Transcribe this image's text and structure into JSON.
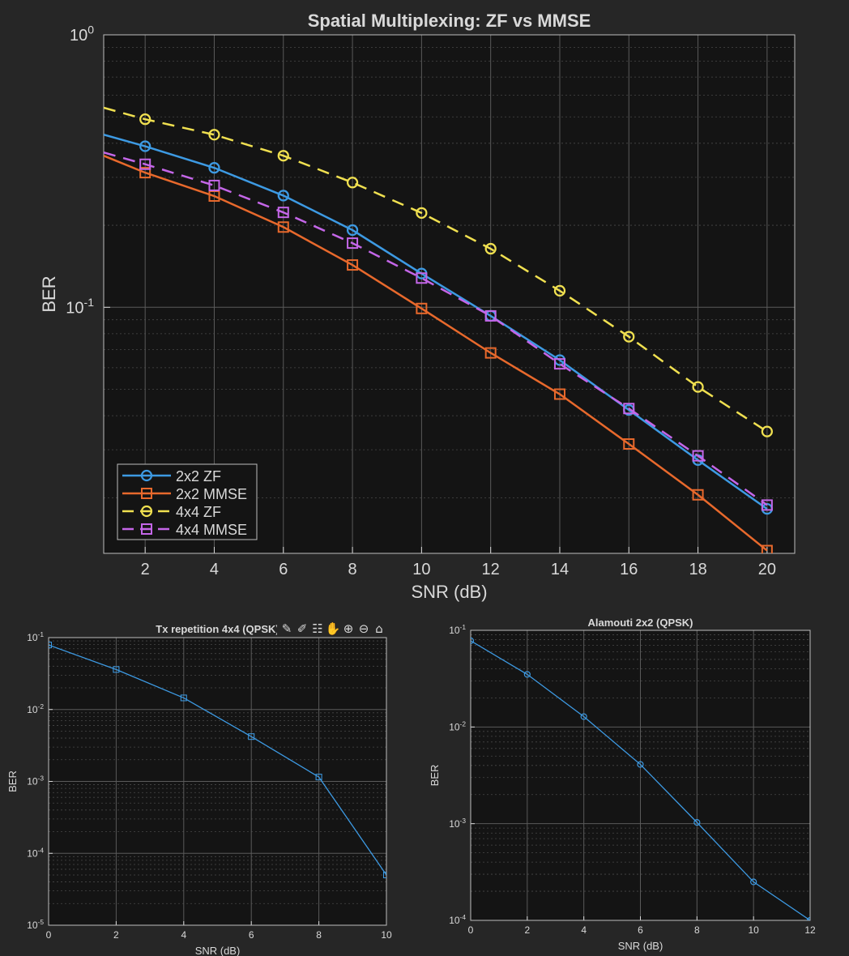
{
  "figure": {
    "background": "#262626",
    "axes_background": "#141414",
    "text_color": "#d9d9d9",
    "grid_color": "#5a5a5a"
  },
  "axes_toolbar": {
    "icons": [
      "export-icon",
      "brush-icon",
      "datatip-icon",
      "pan-hand-icon",
      "zoom-in-icon",
      "zoom-out-icon",
      "restore-view-home-icon"
    ]
  },
  "chart_data": [
    {
      "type": "line",
      "title": "Spatial Multiplexing: ZF vs MMSE",
      "xlabel": "SNR (dB)",
      "ylabel": "BER",
      "xscale": "linear",
      "yscale": "log",
      "xlim": [
        0.8,
        20.8
      ],
      "ylim": [
        0.0125,
        1.0
      ],
      "xticks": [
        "2",
        "4",
        "6",
        "8",
        "10",
        "12",
        "14",
        "16",
        "18",
        "20"
      ],
      "yticks": [
        {
          "base": "10",
          "exp": "0"
        },
        {
          "base": "10",
          "exp": "-1"
        }
      ],
      "grid": true,
      "minor_grid": true,
      "legend": "bottom-left",
      "x": [
        2,
        4,
        6,
        8,
        10,
        12,
        14,
        16,
        18,
        20
      ],
      "series": [
        {
          "name": "2x2 ZF",
          "color": "#3d9ae3",
          "dash": "solid",
          "marker": "circle",
          "y": [
            0.39,
            0.325,
            0.257,
            0.192,
            0.133,
            0.093,
            0.064,
            0.042,
            0.0275,
            0.0182
          ],
          "line_start": 0.43
        },
        {
          "name": "2x2 MMSE",
          "color": "#e8692c",
          "dash": "solid",
          "marker": "square",
          "y": [
            0.312,
            0.256,
            0.197,
            0.143,
            0.099,
            0.068,
            0.048,
            0.0315,
            0.0205,
            0.0128
          ],
          "line_start": 0.36
        },
        {
          "name": "4x4 ZF",
          "color": "#f0e050",
          "dash": "dashed",
          "marker": "circle",
          "y": [
            0.49,
            0.43,
            0.36,
            0.287,
            0.222,
            0.164,
            0.115,
            0.078,
            0.051,
            0.035
          ],
          "line_start": 0.54
        },
        {
          "name": "4x4 MMSE",
          "color": "#c466e8",
          "dash": "dashed",
          "marker": "square",
          "y": [
            0.335,
            0.28,
            0.223,
            0.172,
            0.128,
            0.093,
            0.062,
            0.0425,
            0.0285,
            0.0188
          ],
          "line_start": 0.37
        }
      ]
    },
    {
      "type": "line",
      "title": "Tx repetition 4x4 (QPSK)",
      "xlabel": "SNR (dB)",
      "ylabel": "BER",
      "xscale": "linear",
      "yscale": "log",
      "xlim": [
        0,
        10
      ],
      "ylim": [
        1e-05,
        0.1
      ],
      "xticks": [
        "0",
        "2",
        "4",
        "6",
        "8",
        "10"
      ],
      "yticks": [
        {
          "base": "10",
          "exp": "-1"
        },
        {
          "base": "10",
          "exp": "-2"
        },
        {
          "base": "10",
          "exp": "-3"
        },
        {
          "base": "10",
          "exp": "-4"
        },
        {
          "base": "10",
          "exp": "-5"
        }
      ],
      "grid": true,
      "minor_grid": true,
      "series": [
        {
          "name": "",
          "color": "#3d9ae3",
          "marker": "square",
          "x": [
            0,
            2,
            4,
            6,
            8,
            10
          ],
          "y": [
            0.079,
            0.036,
            0.0145,
            0.0042,
            0.00115,
            5e-05
          ]
        }
      ]
    },
    {
      "type": "line",
      "title": "Alamouti 2x2 (QPSK)",
      "xlabel": "SNR (dB)",
      "ylabel": "BER",
      "xscale": "linear",
      "yscale": "log",
      "xlim": [
        0,
        12
      ],
      "ylim": [
        0.0001,
        0.1
      ],
      "xticks": [
        "0",
        "2",
        "4",
        "6",
        "8",
        "10",
        "12"
      ],
      "yticks": [
        {
          "base": "10",
          "exp": "-1"
        },
        {
          "base": "10",
          "exp": "-2"
        },
        {
          "base": "10",
          "exp": "-3"
        },
        {
          "base": "10",
          "exp": "-4"
        }
      ],
      "grid": true,
      "minor_grid": true,
      "series": [
        {
          "name": "",
          "color": "#3d9ae3",
          "marker": "circle",
          "x": [
            0,
            2,
            4,
            6,
            8,
            10,
            12
          ],
          "y": [
            0.078,
            0.035,
            0.0128,
            0.0041,
            0.00103,
            0.00025,
            0.0001
          ]
        }
      ]
    }
  ]
}
